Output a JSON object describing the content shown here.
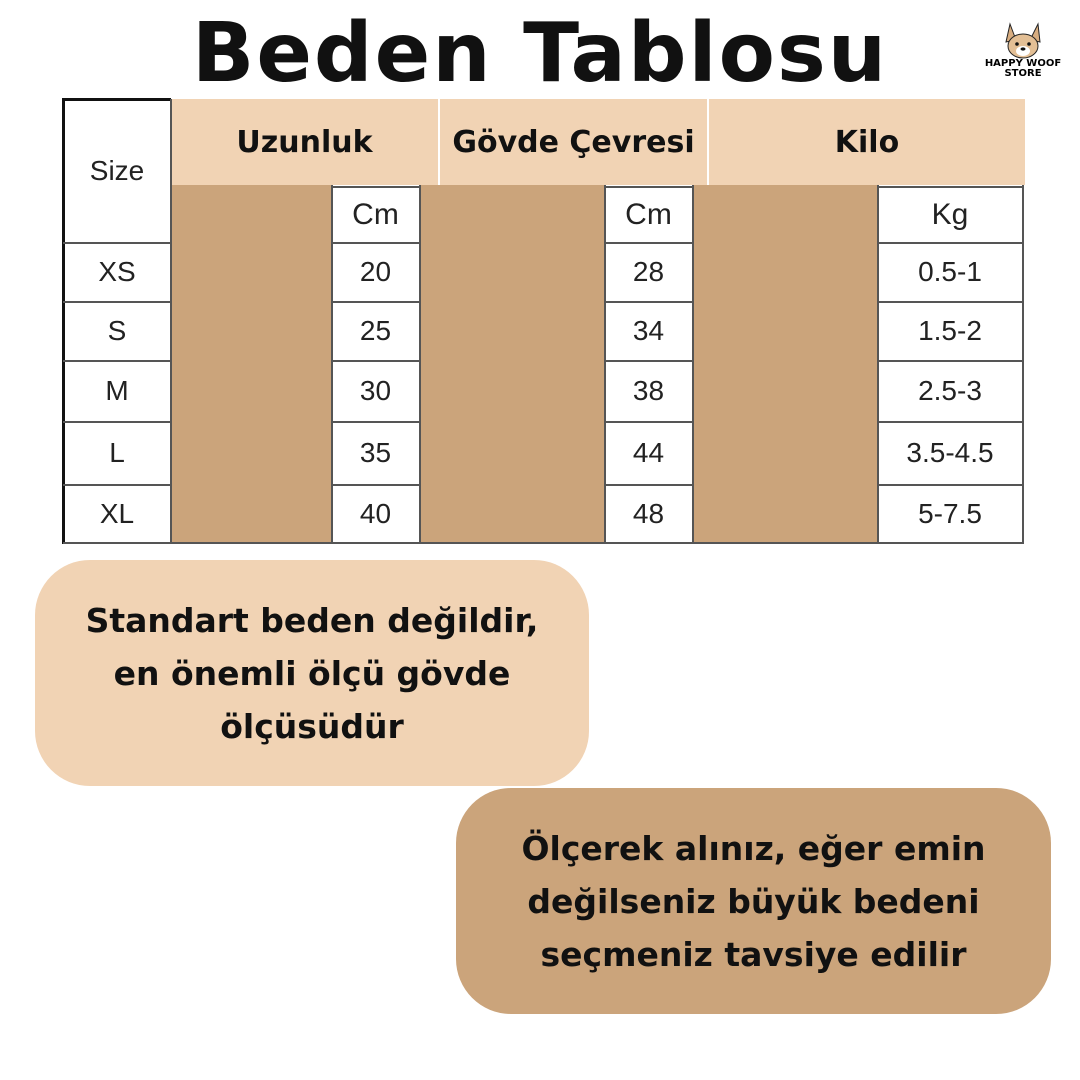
{
  "title": "Beden Tablosu",
  "logo": {
    "line1": "HAPPY WOOF",
    "line2": "STORE",
    "icon": "dog-face-icon"
  },
  "colors": {
    "light": "#f1d3b4",
    "dark": "#cba47b"
  },
  "table": {
    "size_header": "Size",
    "groups": [
      {
        "label": "Uzunluk",
        "unit": "Cm"
      },
      {
        "label": "Gövde Çevresi",
        "unit": "Cm"
      },
      {
        "label": "Kilo",
        "unit": "Kg"
      }
    ],
    "rows": [
      {
        "size": "XS",
        "values": [
          "20",
          "28",
          "0.5-1"
        ]
      },
      {
        "size": "S",
        "values": [
          "25",
          "34",
          "1.5-2"
        ]
      },
      {
        "size": "M",
        "values": [
          "30",
          "38",
          "2.5-3"
        ]
      },
      {
        "size": "L",
        "values": [
          "35",
          "44",
          "3.5-4.5"
        ]
      },
      {
        "size": "XL",
        "values": [
          "40",
          "48",
          "5-7.5"
        ]
      }
    ]
  },
  "notes": [
    "Standart beden değildir, en önemli ölçü gövde ölçüsüdür",
    "Ölçerek alınız, eğer emin değilseniz büyük bedeni seçmeniz tavsiye edilir"
  ]
}
